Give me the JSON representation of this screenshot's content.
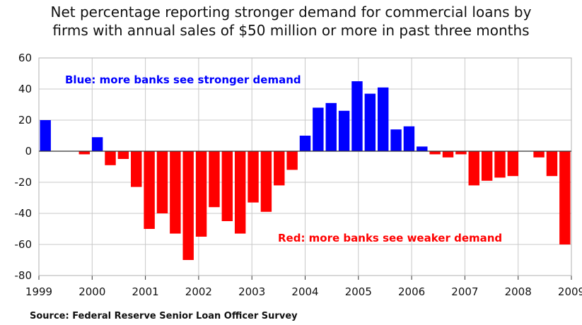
{
  "chart_data": {
    "type": "bar",
    "title": "Net percentage reporting stronger demand for commercial loans by firms with annual sales of $50 million or more in past three months",
    "title_lines": [
      "Net percentage reporting stronger demand for commercial loans by",
      "firms with annual sales of $50 million or more in past three months"
    ],
    "source": "Source: Federal Reserve Senior Loan Officer Survey",
    "ylim": [
      -80,
      60
    ],
    "yticks": [
      60,
      40,
      20,
      0,
      -20,
      -40,
      -60,
      -80
    ],
    "xticks": [
      "1999",
      "2000",
      "2001",
      "2002",
      "2003",
      "2004",
      "2005",
      "2006",
      "2007",
      "2008",
      "2009"
    ],
    "grid": true,
    "positive_color": "#0000ff",
    "negative_color": "#ff0000",
    "annotations": [
      {
        "text": "Blue: more banks see stronger demand",
        "color": "#0000ff"
      },
      {
        "text": "Red: more banks see weaker demand",
        "color": "#ff0000"
      }
    ],
    "values": [
      20,
      0,
      0,
      -2,
      9,
      -9,
      -5,
      -23,
      -50,
      -40,
      -53,
      -70,
      -55,
      -36,
      -45,
      -53,
      -33,
      -39,
      -22,
      -12,
      10,
      28,
      31,
      26,
      45,
      37,
      41,
      14,
      16,
      3,
      -2,
      -4,
      -2,
      -22,
      -19,
      -17,
      -16,
      0,
      -4,
      -16,
      -60
    ]
  }
}
